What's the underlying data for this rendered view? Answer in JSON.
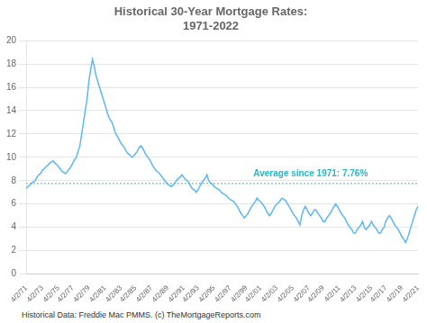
{
  "chart_data": {
    "type": "line",
    "title": "Historical 30-Year Mortgage Rates:",
    "subtitle": "1971-2022",
    "categories": [
      "4/2/71",
      null,
      null,
      null,
      null,
      null,
      null,
      null,
      null,
      "4/2/73",
      null,
      null,
      null,
      null,
      null,
      null,
      null,
      null,
      "4/2/75",
      null,
      null,
      null,
      null,
      null,
      null,
      null,
      "4/2/77",
      null,
      null,
      null,
      null,
      null,
      null,
      null,
      null,
      "4/2/79",
      null,
      null,
      null,
      null,
      null,
      null,
      null,
      null,
      "4/2/81",
      null,
      null,
      null,
      null,
      null,
      null,
      null,
      null,
      "4/2/83",
      null,
      null,
      null,
      null,
      null,
      null,
      null,
      "4/2/85",
      null,
      null,
      null,
      null,
      null,
      null,
      null,
      null,
      "4/2/87",
      null,
      null,
      null,
      null,
      null,
      null,
      null,
      null,
      "4/2/89",
      null,
      null,
      null,
      null,
      null,
      null,
      null,
      null,
      "4/2/91",
      null,
      null,
      null,
      null,
      null,
      null,
      null,
      "4/2/93",
      null,
      null,
      null,
      null,
      null,
      null,
      null,
      null,
      "4/2/95",
      null,
      null,
      null,
      null,
      null,
      null,
      null,
      null,
      "4/2/97",
      null,
      null,
      null,
      null,
      null,
      null,
      null,
      null,
      "4/2/99",
      null,
      null,
      null,
      null,
      null,
      null,
      null,
      "4/2/01",
      null,
      null,
      null,
      null,
      null,
      null,
      null,
      null,
      "4/2/03",
      null,
      null,
      null,
      null,
      null,
      null,
      null,
      null,
      "4/2/05",
      null,
      null,
      null,
      null,
      null,
      null,
      null,
      null,
      "4/2/07",
      null,
      null,
      null,
      null,
      null,
      null,
      null,
      "4/2/09",
      null,
      null,
      null,
      null,
      null,
      null,
      null,
      null,
      "4/2/11",
      null,
      null,
      null,
      null,
      null,
      null,
      null,
      null,
      "4/2/13",
      null,
      null,
      null,
      null,
      null,
      null,
      null,
      null,
      "4/2/15",
      null,
      null,
      null,
      null,
      null,
      null,
      null,
      "4/2/17",
      null,
      null,
      null,
      null,
      null,
      null,
      null,
      null,
      "4/2/19",
      null,
      null,
      null,
      null,
      null,
      null,
      null,
      null,
      "4/2/21"
    ],
    "values": [
      7.33,
      7.5,
      7.6,
      7.8,
      7.9,
      8.0,
      8.3,
      8.5,
      8.6,
      8.9,
      9.0,
      9.2,
      9.3,
      9.5,
      9.6,
      9.7,
      9.5,
      9.4,
      9.2,
      9.0,
      8.8,
      8.7,
      8.6,
      8.8,
      9.0,
      9.2,
      9.5,
      9.8,
      10.0,
      10.5,
      11.0,
      12.0,
      13.0,
      14.0,
      15.0,
      16.5,
      17.5,
      18.4,
      17.8,
      17.0,
      16.5,
      16.0,
      15.5,
      15.0,
      14.5,
      14.0,
      13.5,
      13.2,
      13.0,
      12.5,
      12.0,
      11.8,
      11.5,
      11.2,
      11.0,
      10.8,
      10.5,
      10.3,
      10.2,
      10.0,
      10.1,
      10.3,
      10.5,
      10.8,
      11.0,
      10.8,
      10.5,
      10.2,
      10.0,
      9.8,
      9.5,
      9.2,
      9.0,
      8.8,
      8.7,
      8.5,
      8.3,
      8.1,
      7.9,
      7.7,
      7.6,
      7.5,
      7.6,
      7.8,
      8.0,
      8.2,
      8.3,
      8.5,
      8.3,
      8.1,
      8.0,
      7.8,
      7.5,
      7.3,
      7.2,
      7.0,
      7.2,
      7.5,
      7.8,
      8.0,
      8.2,
      8.5,
      8.0,
      7.8,
      7.7,
      7.5,
      7.4,
      7.3,
      7.2,
      7.0,
      6.9,
      6.8,
      6.7,
      6.5,
      6.4,
      6.3,
      6.2,
      6.0,
      5.8,
      5.5,
      5.2,
      5.0,
      4.8,
      5.0,
      5.2,
      5.5,
      5.8,
      6.0,
      6.2,
      6.5,
      6.3,
      6.2,
      6.0,
      5.8,
      5.5,
      5.2,
      5.0,
      5.2,
      5.5,
      5.8,
      6.0,
      6.1,
      6.3,
      6.5,
      6.4,
      6.3,
      6.0,
      5.8,
      5.5,
      5.2,
      5.0,
      4.8,
      4.5,
      4.2,
      5.0,
      5.5,
      5.8,
      5.5,
      5.2,
      5.0,
      5.2,
      5.5,
      5.5,
      5.2,
      5.0,
      4.8,
      4.5,
      4.5,
      4.8,
      5.0,
      5.2,
      5.5,
      5.8,
      6.0,
      5.8,
      5.5,
      5.2,
      5.0,
      4.8,
      4.5,
      4.2,
      4.0,
      3.8,
      3.5,
      3.5,
      3.8,
      4.0,
      4.2,
      4.5,
      4.0,
      3.8,
      4.0,
      4.2,
      4.5,
      4.2,
      4.0,
      3.8,
      3.5,
      3.5,
      3.8,
      4.0,
      4.5,
      4.8,
      5.0,
      4.8,
      4.5,
      4.2,
      4.0,
      3.8,
      3.5,
      3.2,
      3.0,
      2.7,
      3.0,
      3.5,
      4.0,
      4.5,
      5.0,
      5.5,
      5.8
    ],
    "color": "#5BB8F5",
    "ylim": [
      0,
      20
    ],
    "yticks": [
      0,
      2,
      4,
      6,
      8,
      10,
      12,
      14,
      16,
      18,
      20
    ],
    "grid": true,
    "annotations": [
      {
        "type": "hline",
        "y": 7.76,
        "text": "Average since 1971: 7.76%",
        "color": "#29B6C4",
        "line_style": "dotted"
      }
    ],
    "footnote": "Historical Data: Freddie Mac PMMS. (c) TheMortgageReports.com"
  }
}
